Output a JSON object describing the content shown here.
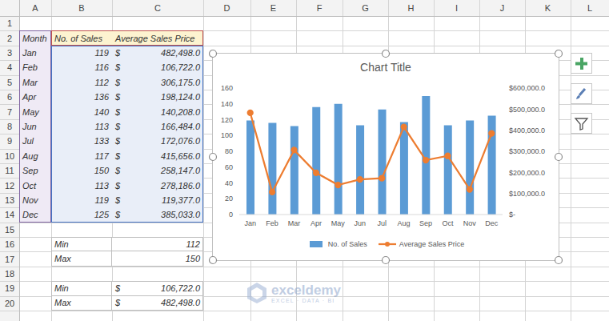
{
  "sheet": {
    "columns": [
      "A",
      "B",
      "C",
      "D",
      "E",
      "F",
      "G",
      "H",
      "I",
      "J",
      "K",
      "L"
    ],
    "row_numbers": [
      1,
      2,
      3,
      4,
      5,
      6,
      7,
      8,
      9,
      10,
      11,
      12,
      13,
      14,
      15,
      16,
      17,
      18,
      19,
      20
    ],
    "table": {
      "header": [
        "Month",
        "No. of Sales",
        "Average Sales Price"
      ],
      "currency": "$",
      "rows": [
        [
          "Jan",
          "119",
          "482,498.0"
        ],
        [
          "Feb",
          "116",
          "106,722.0"
        ],
        [
          "Mar",
          "112",
          "306,175.0"
        ],
        [
          "Apr",
          "136",
          "198,124.0"
        ],
        [
          "May",
          "140",
          "140,208.0"
        ],
        [
          "Jun",
          "113",
          "166,484.0"
        ],
        [
          "Jul",
          "133",
          "172,076.0"
        ],
        [
          "Aug",
          "117",
          "415,656.0"
        ],
        [
          "Sep",
          "150",
          "258,147.0"
        ],
        [
          "Oct",
          "113",
          "278,186.0"
        ],
        [
          "Nov",
          "119",
          "119,377.0"
        ],
        [
          "Dec",
          "125",
          "385,033.0"
        ]
      ]
    },
    "sales_summary": [
      [
        "Min",
        "112"
      ],
      [
        "Max",
        "150"
      ]
    ],
    "price_summary": [
      [
        "Min",
        "106,722.0"
      ],
      [
        "Max",
        "482,498.0"
      ]
    ],
    "watermark": {
      "name": "exceldemy",
      "tagline": "EXCEL · DATA · BI"
    }
  },
  "chart_data": {
    "type": "bar",
    "title": "Chart Title",
    "categories": [
      "Jan",
      "Feb",
      "Mar",
      "Apr",
      "May",
      "Jun",
      "Jul",
      "Aug",
      "Sep",
      "Oct",
      "Nov",
      "Dec"
    ],
    "series": [
      {
        "name": "No. of Sales",
        "type": "bar",
        "color": "#5b9bd5",
        "values": [
          119,
          116,
          112,
          136,
          140,
          113,
          133,
          117,
          150,
          113,
          119,
          125
        ]
      },
      {
        "name": "Average Sales Price",
        "type": "line",
        "color": "#ed7d31",
        "marker": "circle",
        "axis": "y2",
        "values": [
          482498,
          106722,
          306175,
          198124,
          140208,
          166484,
          172076,
          415656,
          258147,
          278186,
          119377,
          385033
        ]
      }
    ],
    "ylim": [
      0,
      160
    ],
    "yticks": [
      0,
      20,
      40,
      60,
      80,
      100,
      120,
      140,
      160
    ],
    "y2lim": [
      0,
      600000
    ],
    "y2ticks": [
      {
        "value": 0,
        "label": "$-"
      },
      {
        "value": 100000,
        "label": "$100,000.0"
      },
      {
        "value": 200000,
        "label": "$200,000.0"
      },
      {
        "value": 300000,
        "label": "$300,000.0"
      },
      {
        "value": 400000,
        "label": "$400,000.0"
      },
      {
        "value": 500000,
        "label": "$500,000.0"
      },
      {
        "value": 600000,
        "label": "$600,000.0"
      }
    ],
    "grid": false,
    "legend": "bottom"
  }
}
